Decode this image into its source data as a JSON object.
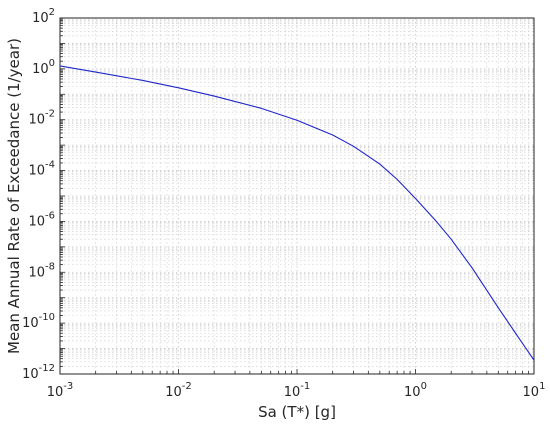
{
  "chart_data": {
    "type": "line",
    "title": "",
    "xlabel": "Sa (T*) [g]",
    "ylabel": "Mean Annual Rate of Exceedance (1/year)",
    "xscale": "log",
    "yscale": "log",
    "xlim": [
      0.001,
      10
    ],
    "ylim": [
      1e-12,
      100
    ],
    "grid": "on (major and minor, dotted)",
    "x_ticks": [
      {
        "value": 0.001,
        "base": "10",
        "exp": "-3"
      },
      {
        "value": 0.01,
        "base": "10",
        "exp": "-2"
      },
      {
        "value": 0.1,
        "base": "10",
        "exp": "-1"
      },
      {
        "value": 1,
        "base": "10",
        "exp": "0"
      },
      {
        "value": 10,
        "base": "10",
        "exp": "1"
      }
    ],
    "y_ticks": [
      {
        "value": 1e-12,
        "base": "10",
        "exp": "-12"
      },
      {
        "value": 1e-10,
        "base": "10",
        "exp": "-10"
      },
      {
        "value": 1e-08,
        "base": "10",
        "exp": "-8"
      },
      {
        "value": 1e-06,
        "base": "10",
        "exp": "-6"
      },
      {
        "value": 0.0001,
        "base": "10",
        "exp": "-4"
      },
      {
        "value": 0.01,
        "base": "10",
        "exp": "-2"
      },
      {
        "value": 1,
        "base": "10",
        "exp": "0"
      },
      {
        "value": 100,
        "base": "10",
        "exp": "2"
      }
    ],
    "series": [
      {
        "color": "#1f26c8",
        "x": [
          0.001,
          0.002,
          0.005,
          0.01,
          0.02,
          0.05,
          0.1,
          0.2,
          0.3,
          0.5,
          0.7,
          1,
          1.5,
          2,
          3,
          5,
          7,
          10
        ],
        "y": [
          1.3,
          0.75,
          0.35,
          0.18,
          0.085,
          0.028,
          0.0095,
          0.0025,
          0.0009,
          0.00018,
          4.5e-05,
          8e-06,
          1e-06,
          2e-07,
          1.5e-08,
          4e-10,
          4e-11,
          3.5e-12
        ]
      }
    ]
  }
}
